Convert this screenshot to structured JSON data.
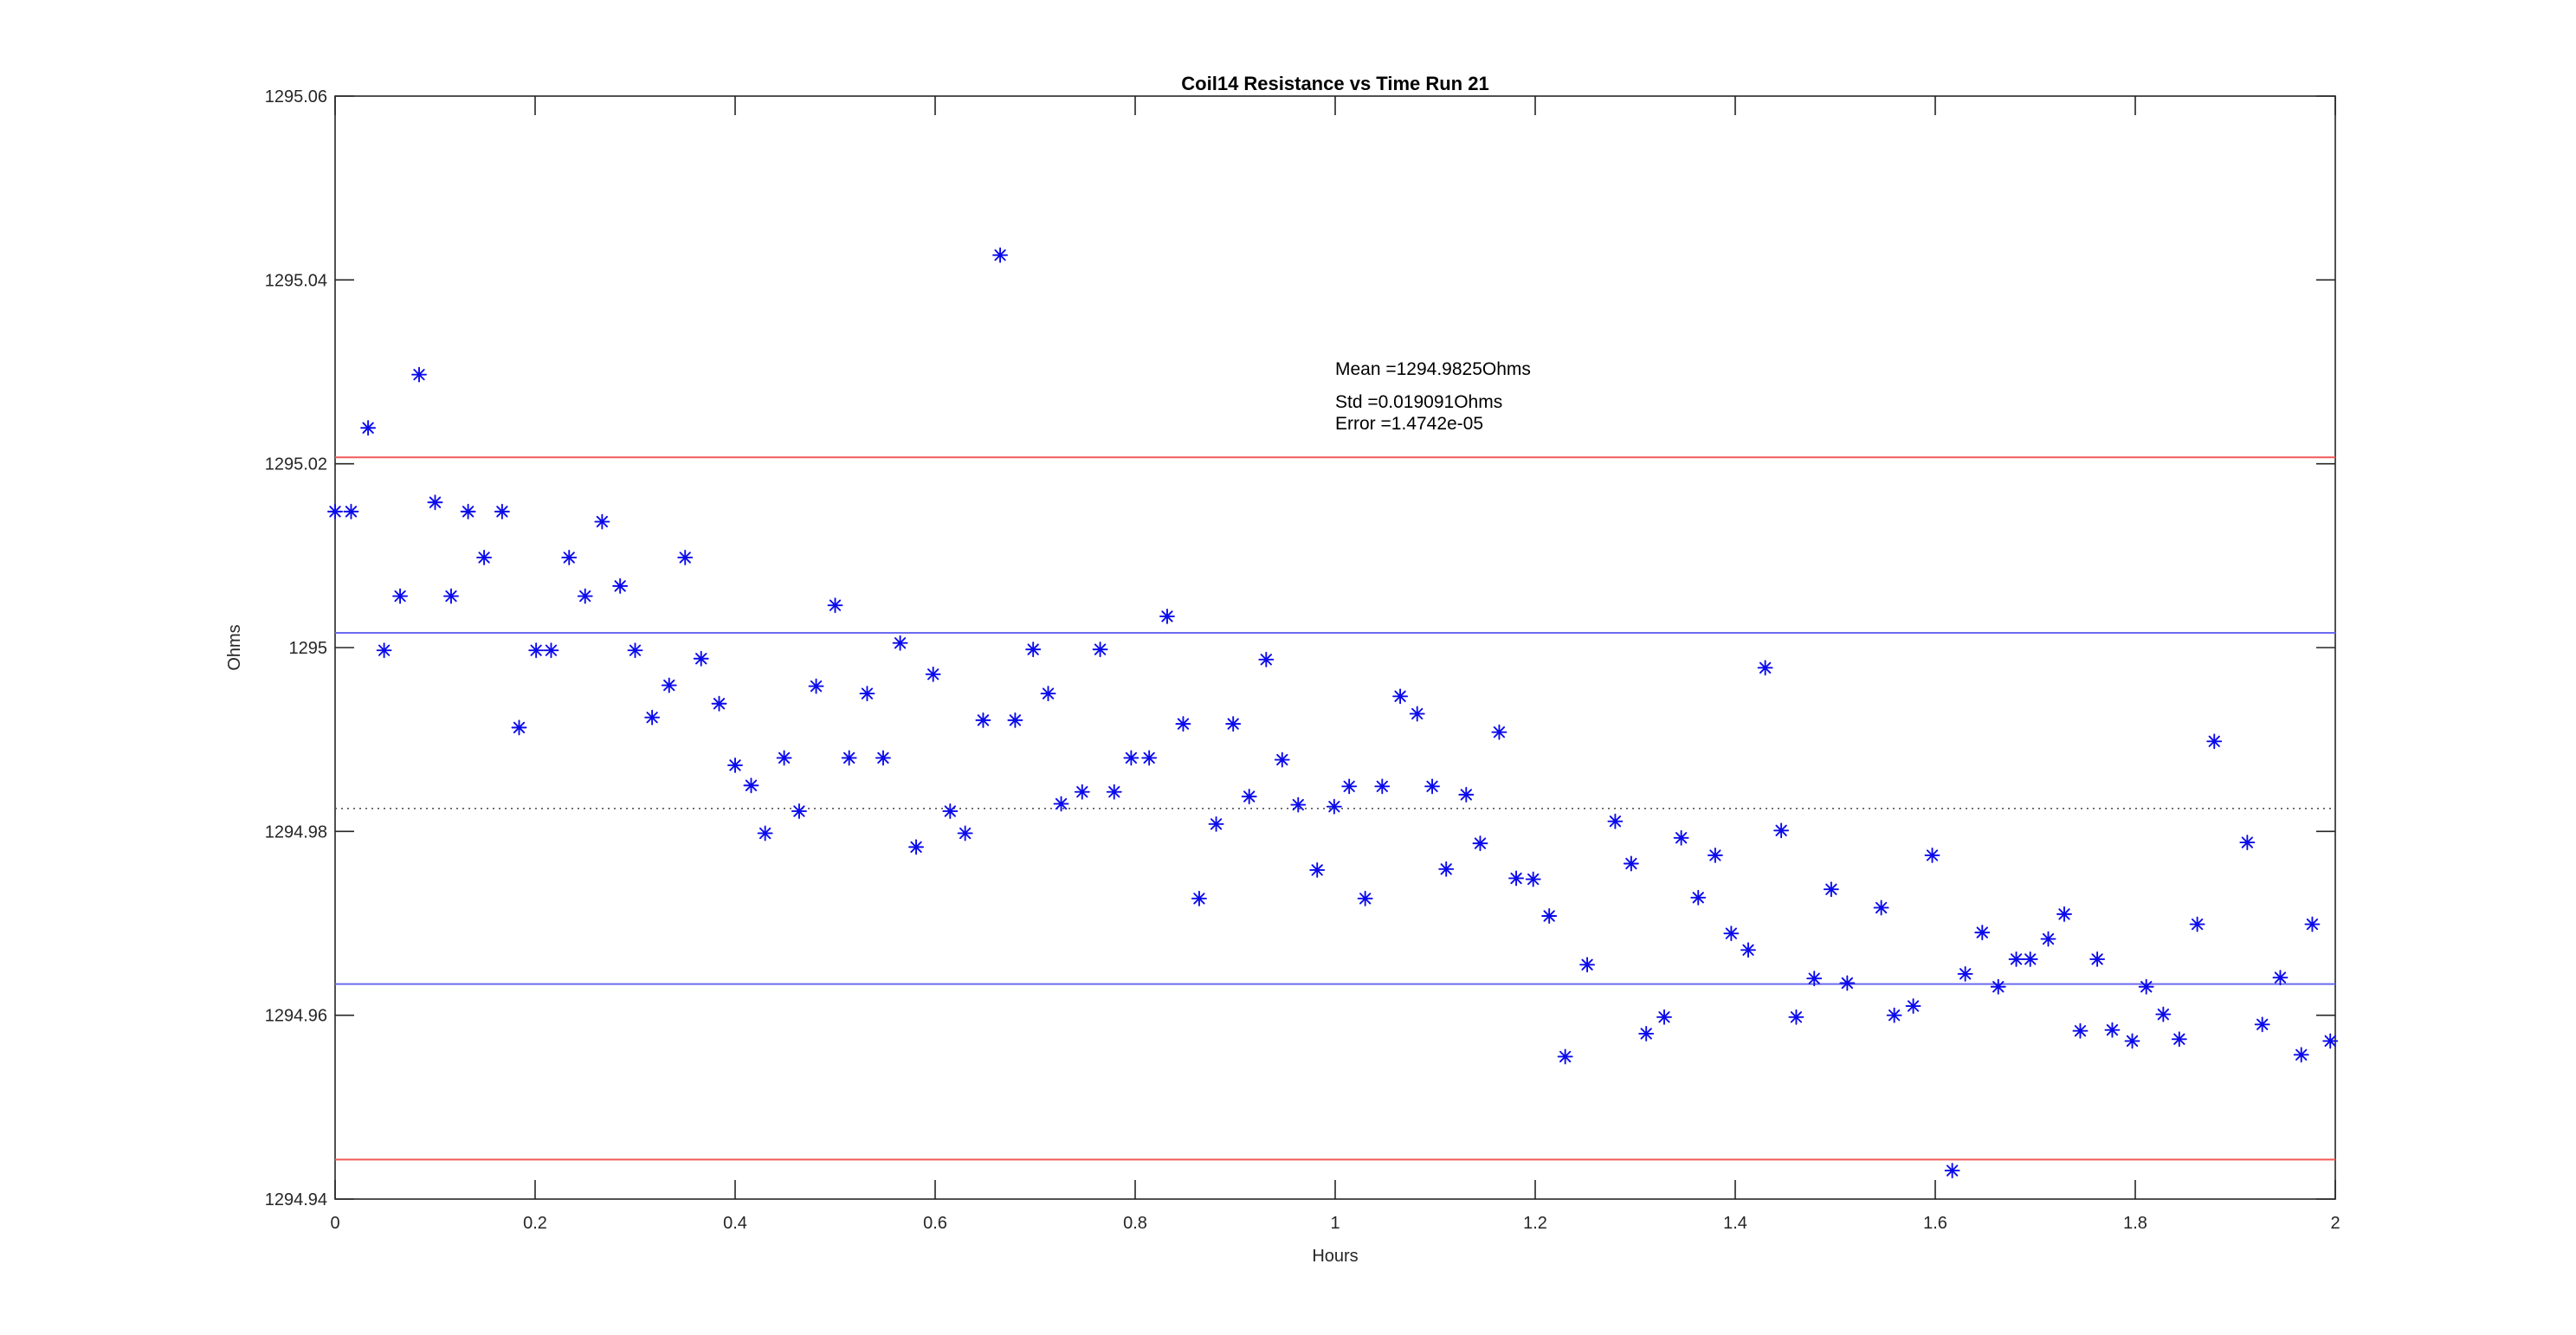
{
  "figure": {
    "title": "Coil14 Resistance vs Time Run 21",
    "xlabel": "Hours",
    "ylabel": "Ohms"
  },
  "annotation": {
    "mean": "Mean =1294.9825Ohms",
    "std": "Std =0.019091Ohms",
    "error": "Error =1.4742e-05"
  },
  "stats": {
    "mean_ohms": 1294.9825,
    "std_ohms": 0.019091,
    "error": 1.4742e-05
  },
  "colors": {
    "marker": "#0b0beb",
    "sigma_line": "#6b6bf0",
    "two_sigma_line": "#f25a5a",
    "mean_line": "#555555",
    "axis": "#262626",
    "background": "#ffffff"
  },
  "chart_data": {
    "type": "scatter",
    "title": "Coil14 Resistance vs Time Run 21",
    "xlabel": "Hours",
    "ylabel": "Ohms",
    "xlim": [
      0,
      2
    ],
    "ylim": [
      1294.94,
      1295.06
    ],
    "grid": false,
    "legend": "none",
    "marker": "blue-asterisk",
    "xticks": {
      "values": [
        0,
        0.2,
        0.4,
        0.6,
        0.8,
        1,
        1.2,
        1.4,
        1.6,
        1.8,
        2
      ],
      "labels": [
        "0",
        "0.2",
        "0.4",
        "0.6",
        "0.8",
        "1",
        "1.2",
        "1.4",
        "1.6",
        "1.8",
        "2"
      ]
    },
    "yticks": {
      "values": [
        1294.94,
        1294.96,
        1294.98,
        1295,
        1295.02,
        1295.04,
        1295.06
      ],
      "labels": [
        "1294.94",
        "1294.96",
        "1294.98",
        "1295",
        "1295.02",
        "1295.04",
        "1295.06"
      ]
    },
    "reference_lines": [
      {
        "name": "mean",
        "value": 1294.9825,
        "style": "dotted",
        "color_key": "mean_line"
      },
      {
        "name": "mean-plus-1std",
        "value": 1295.0016,
        "style": "solid",
        "color_key": "sigma_line"
      },
      {
        "name": "mean-minus-1std",
        "value": 1294.9634,
        "style": "solid",
        "color_key": "sigma_line"
      },
      {
        "name": "mean-plus-2std",
        "value": 1295.0207,
        "style": "solid",
        "color_key": "two_sigma_line"
      },
      {
        "name": "mean-minus-2std",
        "value": 1294.9443,
        "style": "solid",
        "color_key": "two_sigma_line"
      }
    ],
    "points": [
      [
        0.0,
        1295.0148
      ],
      [
        0.016,
        1295.0148
      ],
      [
        0.033,
        1295.0239
      ],
      [
        0.049,
        1294.9997
      ],
      [
        0.065,
        1295.0056
      ],
      [
        0.084,
        1295.0297
      ],
      [
        0.1,
        1295.0158
      ],
      [
        0.116,
        1295.0056
      ],
      [
        0.133,
        1295.0148
      ],
      [
        0.149,
        1295.0098
      ],
      [
        0.167,
        1295.0148
      ],
      [
        0.184,
        1294.9913
      ],
      [
        0.201,
        1294.9997
      ],
      [
        0.216,
        1294.9997
      ],
      [
        0.234,
        1295.0098
      ],
      [
        0.25,
        1295.0056
      ],
      [
        0.267,
        1295.0137
      ],
      [
        0.285,
        1295.0067
      ],
      [
        0.3,
        1294.9997
      ],
      [
        0.317,
        1294.9924
      ],
      [
        0.334,
        1294.9959
      ],
      [
        0.35,
        1295.0098
      ],
      [
        0.366,
        1294.9988
      ],
      [
        0.384,
        1294.9939
      ],
      [
        0.4,
        1294.9872
      ],
      [
        0.416,
        1294.985
      ],
      [
        0.43,
        1294.9798
      ],
      [
        0.449,
        1294.988
      ],
      [
        0.464,
        1294.9822
      ],
      [
        0.481,
        1294.9958
      ],
      [
        0.5,
        1295.0046
      ],
      [
        0.514,
        1294.988
      ],
      [
        0.532,
        1294.995
      ],
      [
        0.548,
        1294.988
      ],
      [
        0.565,
        1295.0005
      ],
      [
        0.581,
        1294.9783
      ],
      [
        0.598,
        1294.9971
      ],
      [
        0.615,
        1294.9822
      ],
      [
        0.63,
        1294.9798
      ],
      [
        0.648,
        1294.9921
      ],
      [
        0.665,
        1295.0427
      ],
      [
        0.68,
        1294.9921
      ],
      [
        0.698,
        1294.9998
      ],
      [
        0.713,
        1294.995
      ],
      [
        0.726,
        1294.983
      ],
      [
        0.747,
        1294.9843
      ],
      [
        0.765,
        1294.9998
      ],
      [
        0.779,
        1294.9843
      ],
      [
        0.796,
        1294.988
      ],
      [
        0.814,
        1294.988
      ],
      [
        0.832,
        1295.0034
      ],
      [
        0.848,
        1294.9917
      ],
      [
        0.864,
        1294.9727
      ],
      [
        0.881,
        1294.9808
      ],
      [
        0.898,
        1294.9917
      ],
      [
        0.914,
        1294.9838
      ],
      [
        0.931,
        1294.9987
      ],
      [
        0.947,
        1294.9878
      ],
      [
        0.963,
        1294.9829
      ],
      [
        0.982,
        1294.9758
      ],
      [
        0.999,
        1294.9827
      ],
      [
        1.014,
        1294.9849
      ],
      [
        1.03,
        1294.9727
      ],
      [
        1.047,
        1294.9849
      ],
      [
        1.065,
        1294.9947
      ],
      [
        1.082,
        1294.9928
      ],
      [
        1.097,
        1294.9849
      ],
      [
        1.111,
        1294.9759
      ],
      [
        1.131,
        1294.984
      ],
      [
        1.145,
        1294.9787
      ],
      [
        1.164,
        1294.9908
      ],
      [
        1.181,
        1294.9749
      ],
      [
        1.198,
        1294.9748
      ],
      [
        1.214,
        1294.9708
      ],
      [
        1.23,
        1294.9555
      ],
      [
        1.252,
        1294.9655
      ],
      [
        1.28,
        1294.9811
      ],
      [
        1.296,
        1294.9765
      ],
      [
        1.311,
        1294.958
      ],
      [
        1.329,
        1294.9598
      ],
      [
        1.346,
        1294.9793
      ],
      [
        1.363,
        1294.9728
      ],
      [
        1.38,
        1294.9774
      ],
      [
        1.396,
        1294.9689
      ],
      [
        1.413,
        1294.9671
      ],
      [
        1.43,
        1294.9978
      ],
      [
        1.446,
        1294.9801
      ],
      [
        1.461,
        1294.9598
      ],
      [
        1.479,
        1294.964
      ],
      [
        1.496,
        1294.9737
      ],
      [
        1.512,
        1294.9635
      ],
      [
        1.546,
        1294.9717
      ],
      [
        1.559,
        1294.96
      ],
      [
        1.578,
        1294.961
      ],
      [
        1.597,
        1294.9774
      ],
      [
        1.617,
        1294.9431
      ],
      [
        1.63,
        1294.9645
      ],
      [
        1.647,
        1294.969
      ],
      [
        1.663,
        1294.9631
      ],
      [
        1.681,
        1294.9661
      ],
      [
        1.695,
        1294.9661
      ],
      [
        1.713,
        1294.9683
      ],
      [
        1.729,
        1294.971
      ],
      [
        1.745,
        1294.9583
      ],
      [
        1.762,
        1294.9661
      ],
      [
        1.777,
        1294.9584
      ],
      [
        1.797,
        1294.9572
      ],
      [
        1.811,
        1294.9631
      ],
      [
        1.828,
        1294.9601
      ],
      [
        1.844,
        1294.9574
      ],
      [
        1.862,
        1294.9699
      ],
      [
        1.879,
        1294.9898
      ],
      [
        1.912,
        1294.9788
      ],
      [
        1.927,
        1294.959
      ],
      [
        1.945,
        1294.9641
      ],
      [
        1.966,
        1294.9557
      ],
      [
        1.977,
        1294.9699
      ],
      [
        1.995,
        1294.9572
      ]
    ]
  }
}
